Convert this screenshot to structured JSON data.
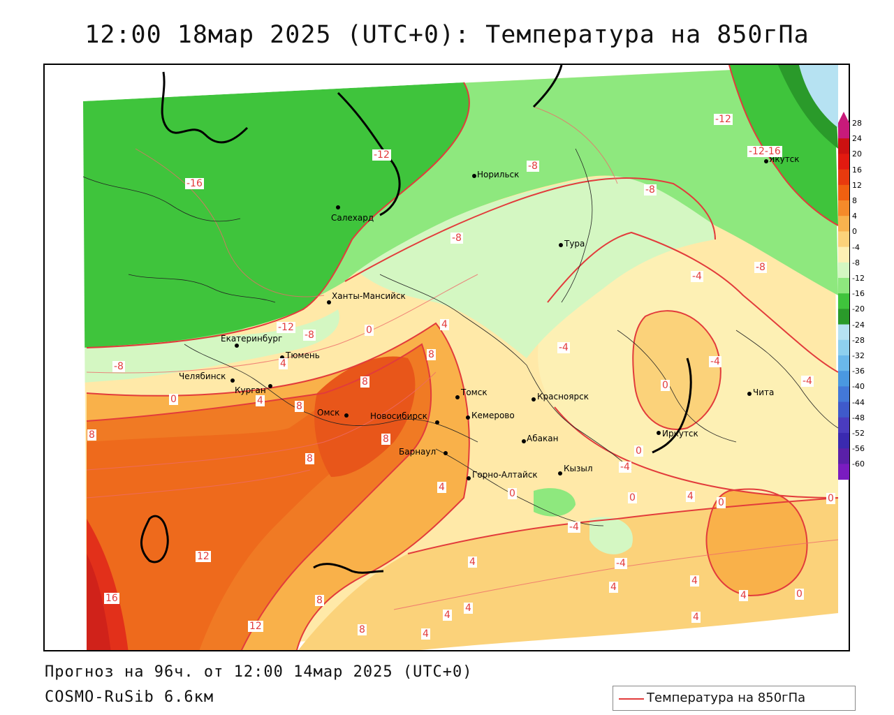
{
  "title": "12:00 18мар 2025 (UTC+0): Температура на 850гПа",
  "forecast_line": "Прогноз на 96ч. от 12:00 14мар 2025 (UTC+0)",
  "model_line": "COSMO-RuSib 6.6км",
  "legend_label": "Температура на 850гПа",
  "colors": {
    "contour": "#e23b3b",
    "boundary": "#000000"
  },
  "cities": [
    {
      "name": "Норильск"
    },
    {
      "name": "Якутск"
    },
    {
      "name": "Салехард"
    },
    {
      "name": "Тура"
    },
    {
      "name": "Ханты-Мансийск"
    },
    {
      "name": "Екатеринбург"
    },
    {
      "name": "Тюмень"
    },
    {
      "name": "Челябинск"
    },
    {
      "name": "Курган"
    },
    {
      "name": "Омск"
    },
    {
      "name": "Новосибирск"
    },
    {
      "name": "Томск"
    },
    {
      "name": "Кемерово"
    },
    {
      "name": "Красноярск"
    },
    {
      "name": "Барнаул"
    },
    {
      "name": "Абакан"
    },
    {
      "name": "Горно-Алтайск"
    },
    {
      "name": "Кызыл"
    },
    {
      "name": "Иркутск"
    },
    {
      "name": "Чита"
    }
  ],
  "contour_labels": [
    "-16",
    "-12",
    "-12",
    "-12-16",
    "-8",
    "-8",
    "-8",
    "-8",
    "-8",
    "-12",
    "-8",
    "-4",
    "-4",
    "-4",
    "-4",
    "-4",
    "-4",
    "-4",
    "0",
    "0",
    "0",
    "0",
    "0",
    "0",
    "0",
    "0",
    "0",
    "4",
    "4",
    "4",
    "4",
    "4",
    "4",
    "4",
    "4",
    "4",
    "4",
    "4",
    "4",
    "4",
    "8",
    "8",
    "8",
    "8",
    "8",
    "8",
    "8",
    "8",
    "12",
    "12",
    "16"
  ],
  "scale": {
    "ticks": [
      "28",
      "24",
      "20",
      "16",
      "12",
      "8",
      "4",
      "0",
      "-4",
      "-8",
      "-12",
      "-16",
      "-20",
      "-24",
      "-28",
      "-32",
      "-36",
      "-40",
      "-44",
      "-48",
      "-52",
      "-56",
      "-60"
    ],
    "colors": [
      "#c81a7a",
      "#cc1111",
      "#e21a10",
      "#e83a0e",
      "#f06010",
      "#f58a2a",
      "#f8b24e",
      "#fbd27a",
      "#fdf0b4",
      "#d4f7c2",
      "#8ee87e",
      "#3fc43c",
      "#2a9a2a",
      "#b6e2f2",
      "#8ed0ee",
      "#6ab8ea",
      "#4a98e0",
      "#4378d8",
      "#3f5acb",
      "#4a3cbf",
      "#3a2ab0",
      "#5a20a8",
      "#7a1cc0"
    ]
  }
}
